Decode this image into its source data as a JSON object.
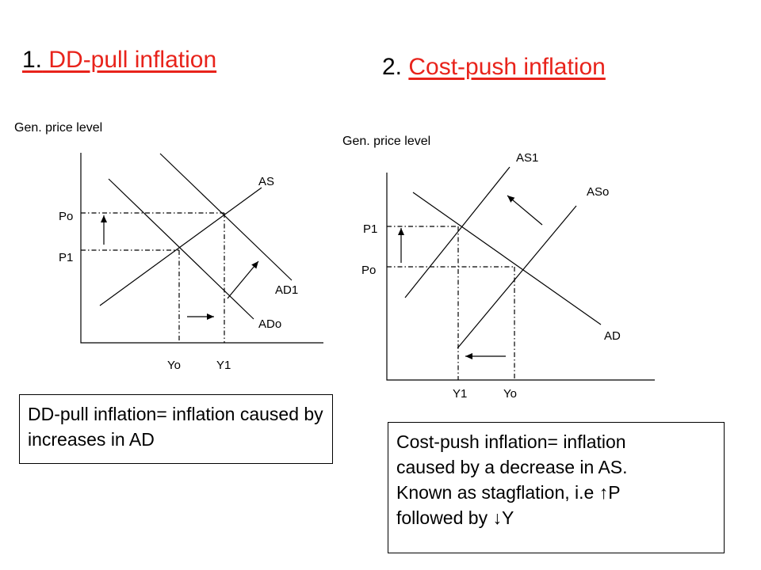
{
  "slide": {
    "title1": {
      "number": "1.",
      "text": " DD-pull inflation"
    },
    "title2": {
      "number": "2. ",
      "text": "Cost-push inflation"
    }
  },
  "diagram1": {
    "y_axis_title": "Gen. price level",
    "labels": {
      "AS": "AS",
      "AD1": "AD1",
      "ADo": "ADo",
      "Po": "Po",
      "P1": "P1",
      "Yo": "Yo",
      "Y1": "Y1"
    },
    "note": "DD-pull inflation= inflation caused by increases in AD"
  },
  "diagram2": {
    "y_axis_title": "Gen. price level",
    "labels": {
      "AS1": "AS1",
      "ASo": "ASo",
      "AD": "AD",
      "P1": "P1",
      "Po": "Po",
      "Y1": "Y1",
      "Yo": "Yo"
    },
    "note_lines": [
      "Cost-push inflation= inflation",
      "caused by a decrease in AS.",
      "Known as stagflation, i.e ↑P",
      "followed by ↓Y"
    ]
  },
  "colors": {
    "title_red": "#e8231b",
    "line": "#000000"
  }
}
